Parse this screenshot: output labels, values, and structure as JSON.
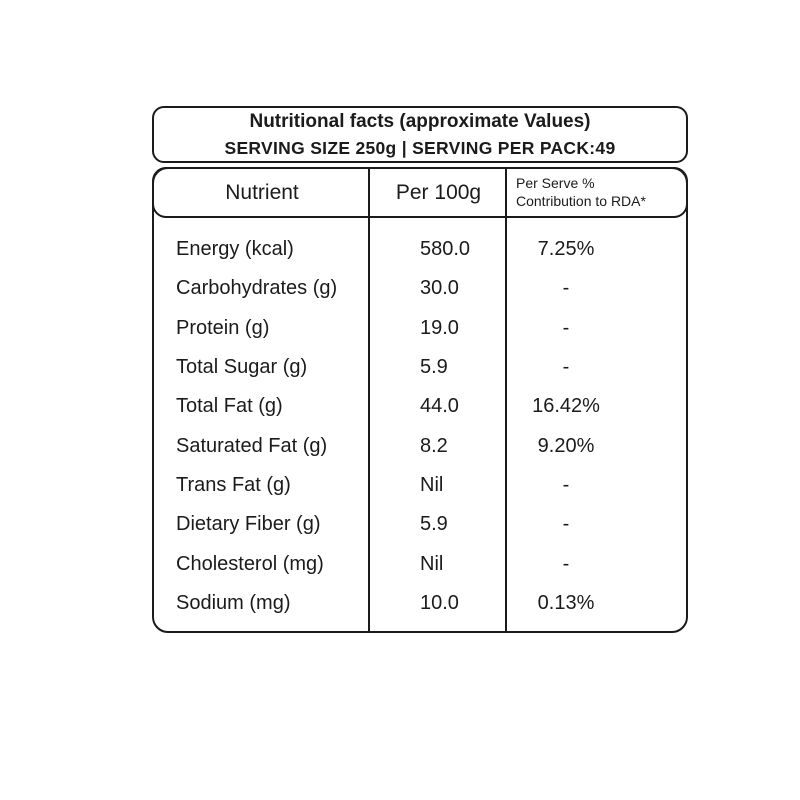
{
  "title": {
    "line1": "Nutritional facts (approximate Values)",
    "line2": "SERVING SIZE 250g | SERVING PER PACK:49"
  },
  "table": {
    "headers": {
      "nutrient": "Nutrient",
      "per100g": "Per 100g",
      "rda_line1": "Per Serve %",
      "rda_line2": "Contribution to RDA*"
    },
    "rows": [
      {
        "nutrient": "Energy (kcal)",
        "per100g": "580.0",
        "rda": "7.25%"
      },
      {
        "nutrient": "Carbohydrates (g)",
        "per100g": "30.0",
        "rda": "-"
      },
      {
        "nutrient": "Protein (g)",
        "per100g": "19.0",
        "rda": "-"
      },
      {
        "nutrient": "Total Sugar (g)",
        "per100g": "5.9",
        "rda": "-"
      },
      {
        "nutrient": "Total Fat (g)",
        "per100g": "44.0",
        "rda": "16.42%"
      },
      {
        "nutrient": "Saturated Fat (g)",
        "per100g": "8.2",
        "rda": "9.20%"
      },
      {
        "nutrient": "Trans Fat (g)",
        "per100g": "Nil",
        "rda": "-"
      },
      {
        "nutrient": "Dietary Fiber (g)",
        "per100g": "5.9",
        "rda": "-"
      },
      {
        "nutrient": "Cholesterol (mg)",
        "per100g": "Nil",
        "rda": "-"
      },
      {
        "nutrient": "Sodium (mg)",
        "per100g": "10.0",
        "rda": "0.13%"
      }
    ],
    "colors": {
      "border": "#1b1b1b",
      "text": "#1b1b1b",
      "background": "#ffffff"
    }
  }
}
